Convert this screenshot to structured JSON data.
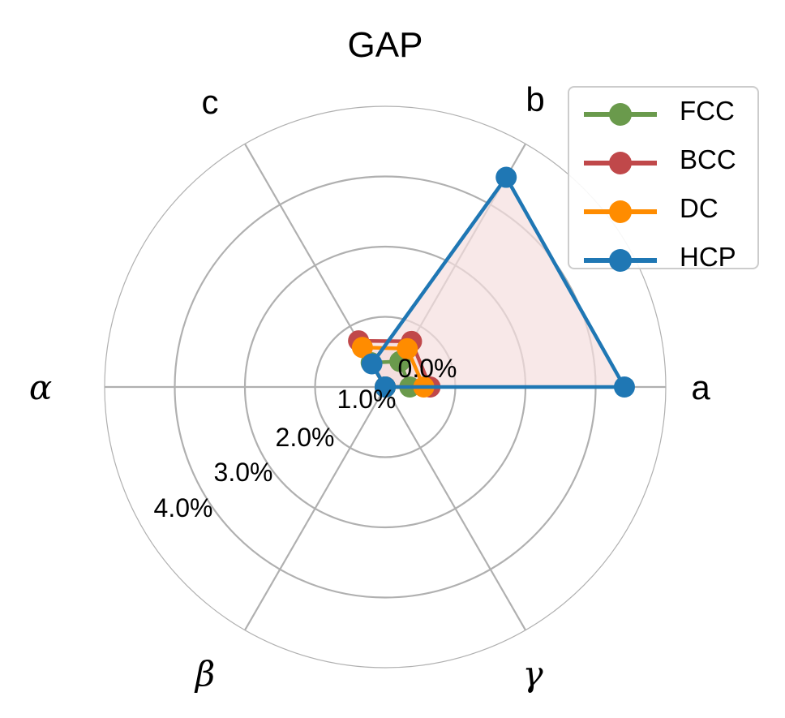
{
  "chart_data": {
    "type": "radar",
    "title": "GAP",
    "axes": [
      "a",
      "b",
      "c",
      "α",
      "β",
      "γ"
    ],
    "axis_angles_deg": [
      0,
      60,
      120,
      180,
      240,
      300
    ],
    "radial_ticks": [
      "0.0%",
      "1.0%",
      "2.0%",
      "3.0%",
      "4.0%"
    ],
    "radial_tick_values": [
      0,
      1,
      2,
      3,
      4
    ],
    "rlim": [
      0,
      4
    ],
    "unit": "%",
    "grid": true,
    "legend_position": "upper right",
    "series": [
      {
        "name": "FCC",
        "color": "#6a9a4c",
        "values": [
          0.35,
          0.42,
          0.4,
          0.0,
          0.0,
          0.0
        ]
      },
      {
        "name": "BCC",
        "color": "#c0484a",
        "values": [
          0.64,
          0.75,
          0.76,
          0.0,
          0.0,
          0.0
        ]
      },
      {
        "name": "DC",
        "color": "#ff8c00",
        "values": [
          0.55,
          0.63,
          0.65,
          0.0,
          0.0,
          0.0
        ]
      },
      {
        "name": "HCP",
        "color": "#1f77b4",
        "values": [
          3.41,
          3.45,
          0.38,
          0.0,
          0.0,
          0.0
        ]
      }
    ],
    "fill_color": "#f5dede"
  },
  "legend": {
    "items": [
      {
        "label": "FCC",
        "color": "#6a9a4c"
      },
      {
        "label": "BCC",
        "color": "#c0484a"
      },
      {
        "label": "DC",
        "color": "#ff8c00"
      },
      {
        "label": "HCP",
        "color": "#1f77b4"
      }
    ]
  }
}
